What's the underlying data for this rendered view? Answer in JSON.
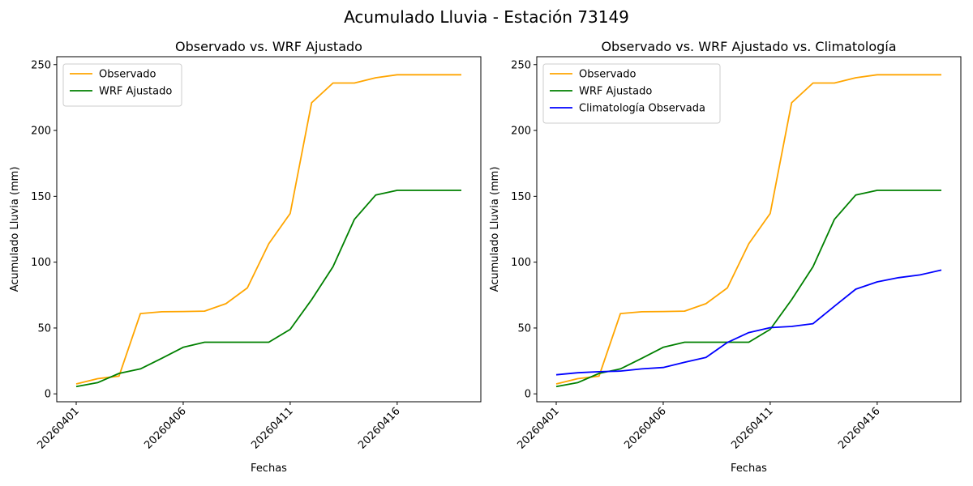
{
  "figure_title": "Acumulado Lluvia - Estación 73149",
  "chart_data": [
    {
      "type": "line",
      "title": "Observado vs. WRF Ajustado",
      "xlabel": "Fechas",
      "ylabel": "Acumulado Lluvia (mm)",
      "x": [
        "20260401",
        "20260402",
        "20260403",
        "20260404",
        "20260405",
        "20260406",
        "20260407",
        "20260408",
        "20260409",
        "20260410",
        "20260411",
        "20260412",
        "20260413",
        "20260414",
        "20260415",
        "20260416",
        "20260417",
        "20260418",
        "20260419"
      ],
      "xticks": [
        "20260401",
        "20260406",
        "20260411",
        "20260416"
      ],
      "yticks": [
        0,
        50,
        100,
        150,
        200,
        250
      ],
      "ylim": [
        -6,
        256
      ],
      "legend_location": "upper-left",
      "series": [
        {
          "name": "Observado",
          "color": "#ffa500",
          "values": [
            7.5,
            11.5,
            13.5,
            61,
            62.3,
            62.5,
            62.8,
            68.5,
            80.5,
            114,
            137,
            221,
            236,
            236,
            240,
            242.3,
            242.3,
            242.3,
            242.3
          ]
        },
        {
          "name": "WRF Ajustado",
          "color": "#008000",
          "values": [
            5.5,
            8.5,
            15.5,
            19,
            27,
            35.3,
            39.2,
            39.2,
            39.2,
            39.2,
            49,
            71.5,
            96.5,
            132.5,
            151,
            154.5,
            154.5,
            154.5,
            154.5
          ]
        }
      ]
    },
    {
      "type": "line",
      "title": "Observado vs. WRF Ajustado vs. Climatología",
      "xlabel": "Fechas",
      "ylabel": "Acumulado Lluvia (mm)",
      "x": [
        "20260401",
        "20260402",
        "20260403",
        "20260404",
        "20260405",
        "20260406",
        "20260407",
        "20260408",
        "20260409",
        "20260410",
        "20260411",
        "20260412",
        "20260413",
        "20260414",
        "20260415",
        "20260416",
        "20260417",
        "20260418",
        "20260419"
      ],
      "xticks": [
        "20260401",
        "20260406",
        "20260411",
        "20260416"
      ],
      "yticks": [
        0,
        50,
        100,
        150,
        200,
        250
      ],
      "ylim": [
        -6,
        256
      ],
      "legend_location": "upper-left",
      "series": [
        {
          "name": "Observado",
          "color": "#ffa500",
          "values": [
            7.5,
            11.5,
            13.5,
            61,
            62.3,
            62.5,
            62.8,
            68.5,
            80.5,
            114,
            137,
            221,
            236,
            236,
            240,
            242.3,
            242.3,
            242.3,
            242.3
          ]
        },
        {
          "name": "WRF Ajustado",
          "color": "#008000",
          "values": [
            5.5,
            8.5,
            15.5,
            19,
            27,
            35.3,
            39.2,
            39.2,
            39.2,
            39.2,
            49,
            71.5,
            96.5,
            132.5,
            151,
            154.5,
            154.5,
            154.5,
            154.5
          ]
        },
        {
          "name": "Climatología Observada",
          "color": "#0000ff",
          "values": [
            14.5,
            16,
            16.8,
            17.3,
            19,
            20,
            24,
            27.7,
            39,
            46.5,
            50.3,
            51.2,
            53.3,
            66.5,
            79.5,
            85,
            88.2,
            90.3,
            94
          ]
        }
      ]
    }
  ]
}
